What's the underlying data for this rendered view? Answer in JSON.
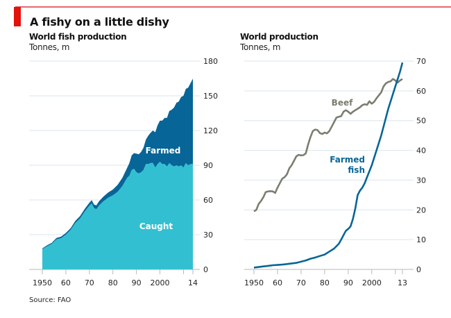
{
  "header": {
    "title": "A fishy on a little dishy",
    "accent_color": "#e3120b",
    "rule_color": "#e9646e"
  },
  "source": "Source: FAO",
  "chart_data": [
    {
      "type": "area",
      "stacked": true,
      "title": "World fish production",
      "ylabel": "Tonnes, m",
      "xlim": [
        1950,
        2014
      ],
      "ylim": [
        0,
        180
      ],
      "yticks": [
        0,
        30,
        60,
        90,
        120,
        150,
        180
      ],
      "xticks": [
        1950,
        1960,
        1970,
        1980,
        1990,
        2000,
        2014
      ],
      "xtick_labels": [
        "1950",
        "60",
        "70",
        "80",
        "90",
        "2000",
        "14"
      ],
      "grid": true,
      "x": [
        1950,
        1952,
        1954,
        1956,
        1958,
        1960,
        1962,
        1964,
        1966,
        1968,
        1970,
        1971,
        1972,
        1973,
        1974,
        1976,
        1978,
        1980,
        1982,
        1984,
        1986,
        1987,
        1988,
        1989,
        1990,
        1991,
        1992,
        1993,
        1994,
        1995,
        1996,
        1997,
        1998,
        1999,
        2000,
        2001,
        2002,
        2003,
        2004,
        2005,
        2006,
        2007,
        2008,
        2009,
        2010,
        2011,
        2012,
        2013,
        2014
      ],
      "series": [
        {
          "name": "Caught",
          "color": "#33bfd2",
          "values": [
            17.5,
            20,
            22,
            26,
            27,
            30,
            34,
            40,
            44,
            50,
            55,
            57,
            53,
            52,
            55,
            59,
            62,
            64,
            67,
            72,
            79,
            81,
            86,
            87,
            84,
            83,
            84,
            86,
            91,
            91,
            92,
            92,
            88,
            91,
            93,
            91,
            91,
            89,
            92,
            90,
            89,
            90,
            89,
            90,
            88,
            92,
            90,
            91,
            91
          ]
        },
        {
          "name": "Farmed",
          "color": "#076597",
          "values": [
            0.6,
            0.8,
            1.0,
            1.2,
            1.4,
            1.5,
            1.6,
            1.8,
            2.0,
            2.2,
            2.6,
            2.8,
            3.0,
            3.3,
            3.6,
            4.0,
            4.5,
            5.0,
            6.0,
            7.0,
            8.6,
            11.0,
            12.5,
            13.5,
            16,
            16.5,
            17.5,
            19.2,
            21,
            24.5,
            26,
            28,
            30.5,
            33.5,
            35.5,
            37.5,
            40,
            42,
            45,
            48,
            51,
            54,
            56,
            59,
            62,
            64,
            67,
            70,
            73.8
          ]
        }
      ],
      "annotations": [
        {
          "text": "Farmed",
          "series": "Farmed",
          "color": "#ffffff"
        },
        {
          "text": "Caught",
          "series": "Caught",
          "color": "#ffffff"
        }
      ]
    },
    {
      "type": "line",
      "title": "World production",
      "ylabel": "Tonnes, m",
      "xlim": [
        1950,
        2013
      ],
      "ylim": [
        0,
        70
      ],
      "yticks": [
        0,
        10,
        20,
        30,
        40,
        50,
        60,
        70
      ],
      "xticks": [
        1950,
        1960,
        1970,
        1980,
        1990,
        2000,
        2013
      ],
      "xtick_labels": [
        "1950",
        "60",
        "70",
        "80",
        "90",
        "2000",
        "13"
      ],
      "grid": true,
      "series": [
        {
          "name": "Beef",
          "color": "#7b7d6e",
          "x": [
            1950,
            1951,
            1952,
            1953,
            1954,
            1955,
            1956,
            1957,
            1958,
            1959,
            1960,
            1961,
            1962,
            1963,
            1964,
            1965,
            1966,
            1967,
            1968,
            1969,
            1970,
            1971,
            1972,
            1973,
            1974,
            1975,
            1976,
            1977,
            1978,
            1979,
            1980,
            1981,
            1982,
            1983,
            1984,
            1985,
            1986,
            1987,
            1988,
            1989,
            1990,
            1991,
            1992,
            1993,
            1994,
            1995,
            1996,
            1997,
            1998,
            1999,
            2000,
            2001,
            2002,
            2003,
            2004,
            2005,
            2006,
            2007,
            2008,
            2009,
            2010,
            2011,
            2012,
            2013
          ],
          "values": [
            19.5,
            20,
            22,
            23,
            24.3,
            26,
            26.2,
            26.3,
            26.2,
            25.7,
            27.5,
            29,
            30.5,
            31,
            32,
            34,
            35,
            36.5,
            38,
            38.5,
            38.3,
            38.4,
            39,
            42,
            44.5,
            46.5,
            47,
            46.8,
            45.8,
            45.5,
            46,
            45.7,
            46.5,
            48,
            49.5,
            51,
            51.3,
            51.5,
            53,
            53.5,
            53,
            52.3,
            53,
            53.5,
            54,
            54.5,
            55.2,
            55.5,
            55.3,
            56.5,
            55.7,
            56.3,
            57.5,
            58.5,
            59.5,
            61.5,
            62.5,
            63,
            63.2,
            64,
            63.5,
            62.8,
            63.5,
            64
          ]
        },
        {
          "name": "Farmed fish",
          "color": "#076597",
          "x": [
            1950,
            1952,
            1954,
            1956,
            1958,
            1960,
            1962,
            1964,
            1966,
            1968,
            1970,
            1972,
            1974,
            1976,
            1978,
            1980,
            1982,
            1984,
            1986,
            1987,
            1988,
            1989,
            1990,
            1991,
            1992,
            1993,
            1994,
            1995,
            1996,
            1997,
            1998,
            1999,
            2000,
            2001,
            2002,
            2003,
            2004,
            2005,
            2006,
            2007,
            2008,
            2009,
            2010,
            2011,
            2012,
            2013
          ],
          "values": [
            0.6,
            0.8,
            1.0,
            1.2,
            1.4,
            1.5,
            1.6,
            1.8,
            2.0,
            2.2,
            2.6,
            3.0,
            3.6,
            4.0,
            4.5,
            5.0,
            6.0,
            7.0,
            8.6,
            10,
            11.5,
            13,
            13.6,
            14.5,
            17,
            20.5,
            25,
            26.5,
            27.5,
            29,
            31,
            33,
            35,
            37.5,
            40,
            42.5,
            45,
            48,
            51,
            54,
            56.5,
            59,
            61.5,
            64,
            66.5,
            69.5
          ]
        }
      ],
      "annotations": [
        {
          "text": "Beef",
          "series": "Beef",
          "color": "#7b7d6e"
        },
        {
          "text": "Farmed",
          "series": "Farmed fish",
          "color": "#076597"
        },
        {
          "text": "fish",
          "series": "Farmed fish",
          "color": "#076597"
        }
      ]
    }
  ]
}
